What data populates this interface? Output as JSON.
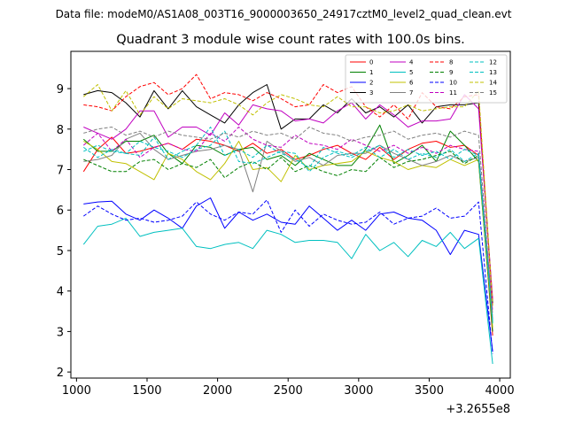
{
  "chart_data": {
    "type": "line",
    "supertitle": "Data file: modeM0/AS1A08_003T16_9000003650_24917cztM0_level2_quad_clean.evt",
    "title": "Quadrant 3 module wise count rates with 100.0s bins.",
    "xlabel": "",
    "ylabel": "",
    "x_offset_label": "+3.2655e8",
    "xlim": [
      960,
      4075
    ],
    "ylim": [
      1.85,
      9.92
    ],
    "xticks": [
      1000,
      1500,
      2000,
      2500,
      3000,
      3500,
      4000
    ],
    "yticks": [
      2,
      3,
      4,
      5,
      6,
      7,
      8,
      9
    ],
    "grid": false,
    "legend_position": "top-right",
    "x": [
      1050,
      1150,
      1250,
      1350,
      1450,
      1550,
      1650,
      1750,
      1850,
      1950,
      2050,
      2150,
      2250,
      2350,
      2450,
      2550,
      2650,
      2750,
      2850,
      2950,
      3050,
      3150,
      3250,
      3350,
      3450,
      3550,
      3650,
      3750,
      3850,
      3950
    ],
    "series": [
      {
        "name": "0",
        "color": "#ff0000",
        "dash": "solid",
        "values": [
          6.95,
          7.5,
          7.8,
          7.4,
          7.45,
          7.55,
          7.65,
          7.5,
          7.75,
          7.7,
          7.6,
          7.45,
          7.65,
          7.4,
          7.5,
          7.25,
          7.35,
          7.5,
          7.6,
          7.4,
          7.25,
          7.55,
          7.25,
          7.5,
          7.65,
          7.7,
          7.55,
          7.6,
          7.35,
          2.9
        ]
      },
      {
        "name": "1",
        "color": "#008000",
        "dash": "solid",
        "values": [
          7.75,
          7.45,
          7.45,
          7.7,
          7.7,
          7.85,
          7.4,
          7.15,
          7.6,
          7.55,
          7.35,
          7.5,
          7.55,
          7.25,
          7.35,
          7.1,
          7.4,
          7.25,
          7.1,
          7.1,
          7.5,
          8.1,
          7.15,
          7.35,
          7.6,
          7.2,
          7.95,
          7.6,
          7.2,
          3.0
        ]
      },
      {
        "name": "2",
        "color": "#0000ff",
        "dash": "solid",
        "values": [
          6.15,
          6.2,
          6.22,
          5.9,
          5.75,
          6.0,
          5.8,
          5.55,
          6.1,
          6.3,
          5.55,
          5.95,
          5.75,
          5.9,
          5.7,
          5.65,
          6.1,
          5.8,
          5.5,
          5.75,
          5.5,
          5.9,
          5.95,
          5.8,
          5.75,
          5.5,
          4.9,
          5.5,
          5.4,
          2.5
        ]
      },
      {
        "name": "3",
        "color": "#000000",
        "dash": "solid",
        "values": [
          8.85,
          8.95,
          8.9,
          8.65,
          8.3,
          8.95,
          8.5,
          8.95,
          8.55,
          8.35,
          8.15,
          8.6,
          8.9,
          9.1,
          8.0,
          8.25,
          8.25,
          8.6,
          8.4,
          8.75,
          8.4,
          8.55,
          8.3,
          8.6,
          8.15,
          8.55,
          8.6,
          8.6,
          8.65,
          3.7
        ]
      },
      {
        "name": "4",
        "color": "#c000c0",
        "dash": "solid",
        "values": [
          8.05,
          7.9,
          7.75,
          8.0,
          8.45,
          8.45,
          7.8,
          8.05,
          8.05,
          7.85,
          8.4,
          8.1,
          8.6,
          8.5,
          8.45,
          8.2,
          8.25,
          8.15,
          8.45,
          8.65,
          8.25,
          8.6,
          8.35,
          8.05,
          8.2,
          8.2,
          8.25,
          8.85,
          8.5,
          3.8
        ]
      },
      {
        "name": "5",
        "color": "#00c0c0",
        "dash": "solid",
        "values": [
          5.15,
          5.6,
          5.65,
          5.8,
          5.35,
          5.45,
          5.5,
          5.55,
          5.1,
          5.05,
          5.15,
          5.2,
          5.05,
          5.5,
          5.4,
          5.2,
          5.25,
          5.25,
          5.2,
          4.8,
          5.4,
          5.0,
          5.2,
          4.85,
          5.25,
          5.1,
          5.45,
          5.05,
          5.3,
          2.2
        ]
      },
      {
        "name": "6",
        "color": "#c0c000",
        "dash": "solid",
        "values": [
          7.7,
          7.5,
          7.2,
          7.15,
          6.95,
          6.75,
          7.4,
          7.25,
          6.95,
          6.75,
          7.15,
          7.7,
          7.0,
          7.05,
          6.7,
          7.35,
          7.0,
          7.1,
          7.15,
          7.2,
          7.45,
          7.3,
          7.2,
          7.0,
          7.1,
          7.05,
          7.25,
          7.1,
          7.25,
          3.1
        ]
      },
      {
        "name": "7",
        "color": "#808080",
        "dash": "solid",
        "values": [
          7.2,
          7.25,
          7.35,
          7.75,
          7.9,
          7.5,
          7.25,
          7.35,
          7.45,
          7.5,
          7.6,
          7.5,
          6.45,
          7.7,
          7.45,
          7.2,
          7.3,
          7.1,
          7.35,
          7.4,
          7.4,
          7.6,
          7.4,
          7.25,
          7.1,
          7.2,
          7.35,
          7.2,
          7.3,
          3.3
        ]
      },
      {
        "name": "8",
        "color": "#ff0000",
        "dash": "dashed",
        "values": [
          8.6,
          8.55,
          8.45,
          8.8,
          9.05,
          9.15,
          8.85,
          9.0,
          9.35,
          8.75,
          8.9,
          8.85,
          8.7,
          8.9,
          8.75,
          8.55,
          8.6,
          9.1,
          8.9,
          9.05,
          8.55,
          8.3,
          8.6,
          8.25,
          8.9,
          8.55,
          8.5,
          8.8,
          8.85,
          3.6
        ]
      },
      {
        "name": "9",
        "color": "#008000",
        "dash": "dashed",
        "values": [
          7.25,
          7.1,
          6.95,
          6.95,
          7.2,
          7.25,
          7.0,
          7.15,
          7.05,
          7.25,
          6.8,
          7.05,
          7.2,
          7.0,
          7.3,
          6.95,
          7.1,
          6.95,
          6.85,
          7.0,
          6.95,
          7.3,
          7.05,
          7.2,
          7.25,
          7.35,
          7.45,
          7.15,
          7.35,
          3.2
        ]
      },
      {
        "name": "10",
        "color": "#0000ff",
        "dash": "dashed",
        "values": [
          5.85,
          6.1,
          5.9,
          5.75,
          5.8,
          5.7,
          5.75,
          5.85,
          6.2,
          5.9,
          5.75,
          5.95,
          5.9,
          6.25,
          5.45,
          6.0,
          5.6,
          5.9,
          5.75,
          5.65,
          5.7,
          5.95,
          5.65,
          5.8,
          5.85,
          6.05,
          5.8,
          5.85,
          6.2,
          2.45
        ]
      },
      {
        "name": "11",
        "color": "#c000c0",
        "dash": "dashed",
        "values": [
          7.6,
          7.9,
          7.45,
          7.75,
          7.3,
          7.55,
          7.65,
          7.5,
          7.45,
          7.9,
          7.7,
          8.05,
          7.75,
          7.6,
          7.55,
          7.85,
          7.65,
          7.6,
          7.5,
          7.75,
          7.6,
          7.45,
          7.6,
          7.4,
          7.55,
          7.4,
          7.6,
          7.5,
          7.45,
          3.5
        ]
      },
      {
        "name": "12",
        "color": "#00c0c0",
        "dash": "dashed",
        "values": [
          7.55,
          7.3,
          7.5,
          7.4,
          7.35,
          7.8,
          7.25,
          7.45,
          7.6,
          8.05,
          7.35,
          7.5,
          7.3,
          7.6,
          7.4,
          7.25,
          7.05,
          7.55,
          7.4,
          7.3,
          7.45,
          7.6,
          7.3,
          7.5,
          7.35,
          7.45,
          7.25,
          7.5,
          7.35,
          3.25
        ]
      },
      {
        "name": "13",
        "color": "#00c0c0",
        "dash": "dashed",
        "values": [
          7.45,
          7.6,
          7.45,
          7.4,
          7.7,
          7.55,
          7.45,
          7.3,
          7.5,
          7.6,
          7.95,
          7.2,
          7.15,
          7.3,
          7.45,
          7.4,
          6.95,
          7.3,
          7.45,
          7.35,
          7.55,
          7.3,
          7.5,
          7.25,
          7.4,
          7.3,
          7.5,
          7.2,
          7.4,
          3.2
        ]
      },
      {
        "name": "14",
        "color": "#c0c000",
        "dash": "dashed",
        "values": [
          8.8,
          9.1,
          8.45,
          8.95,
          8.35,
          8.8,
          8.5,
          8.75,
          8.7,
          8.65,
          8.75,
          8.6,
          8.35,
          8.65,
          8.85,
          8.75,
          8.6,
          8.55,
          8.8,
          8.55,
          8.55,
          8.4,
          8.45,
          8.6,
          8.45,
          8.5,
          8.55,
          8.55,
          8.95,
          3.65
        ]
      },
      {
        "name": "15",
        "color": "#808080",
        "dash": "dashed",
        "values": [
          7.9,
          8.0,
          8.05,
          7.85,
          7.95,
          7.8,
          7.95,
          7.85,
          7.8,
          7.75,
          7.9,
          7.8,
          7.95,
          7.85,
          7.9,
          7.75,
          8.05,
          7.9,
          7.85,
          7.7,
          7.8,
          7.85,
          7.95,
          7.75,
          7.85,
          7.9,
          7.8,
          7.95,
          7.85,
          3.4
        ]
      }
    ]
  }
}
